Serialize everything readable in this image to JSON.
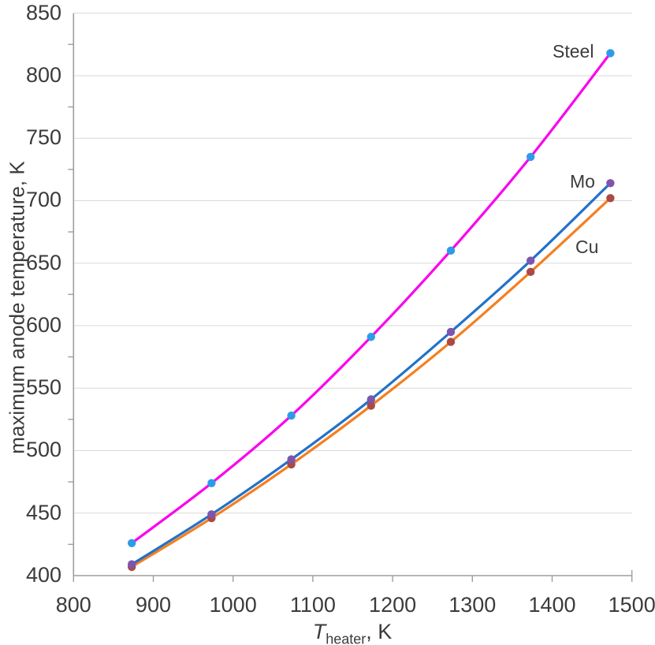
{
  "chart_data": {
    "type": "line",
    "title": "",
    "ylabel": "maximum anode temperature, K",
    "xlabel": {
      "main": "T",
      "sub": "heater",
      "suffix": ", K"
    },
    "x": [
      873,
      973,
      1073,
      1173,
      1273,
      1373,
      1473
    ],
    "series": [
      {
        "name": "Steel",
        "values": [
          426,
          474,
          528,
          591,
          660,
          735,
          818
        ],
        "line_color": "#fb00ee",
        "marker_color": "#2d9ce8"
      },
      {
        "name": "Mo",
        "values": [
          409,
          449,
          493,
          541,
          595,
          652,
          714
        ],
        "line_color": "#2272c8",
        "marker_color": "#7d55ad"
      },
      {
        "name": "Cu",
        "values": [
          407,
          446,
          489,
          536,
          587,
          643,
          702
        ],
        "line_color": "#f57f1f",
        "marker_color": "#aa4a45"
      }
    ],
    "xlim": [
      800,
      1500
    ],
    "ylim": [
      400,
      850
    ],
    "x_ticks": [
      800,
      900,
      1000,
      1100,
      1200,
      1300,
      1400,
      1500
    ],
    "y_ticks": [
      400,
      450,
      500,
      550,
      600,
      650,
      700,
      750,
      800,
      850
    ],
    "y_minor_step": 25,
    "grid": "horizontal-major",
    "legend": "inline-labels",
    "smooth_lines": true
  },
  "style": {
    "gridline_color": "#d9d9d9",
    "axis_color": "#9e9e9e",
    "text_color": "#3b3b3b",
    "background": "#ffffff",
    "line_width": 3.2,
    "marker_radius": 5.2
  }
}
